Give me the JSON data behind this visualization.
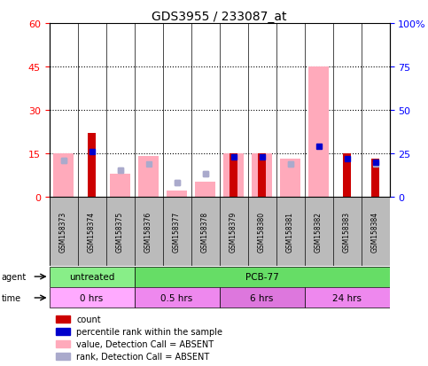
{
  "title": "GDS3955 / 233087_at",
  "samples": [
    "GSM158373",
    "GSM158374",
    "GSM158375",
    "GSM158376",
    "GSM158377",
    "GSM158378",
    "GSM158379",
    "GSM158380",
    "GSM158381",
    "GSM158382",
    "GSM158383",
    "GSM158384"
  ],
  "count_values": [
    0,
    22,
    0,
    0,
    0,
    0,
    15,
    15,
    0,
    0,
    15,
    13
  ],
  "percentile_rank": [
    21,
    26,
    15,
    19,
    8,
    13,
    23,
    23,
    19,
    29,
    22,
    20
  ],
  "percentile_rank_present": [
    false,
    true,
    false,
    false,
    false,
    false,
    true,
    true,
    false,
    true,
    true,
    true
  ],
  "value_absent": [
    15,
    0,
    8,
    14,
    2,
    5,
    15,
    15,
    13,
    45,
    0,
    0
  ],
  "rank_absent": [
    21,
    0,
    15,
    0,
    8,
    13,
    0,
    0,
    19,
    0,
    0,
    19
  ],
  "left_ylim": [
    0,
    60
  ],
  "right_ylim": [
    0,
    100
  ],
  "left_yticks": [
    0,
    15,
    30,
    45,
    60
  ],
  "right_yticks": [
    0,
    25,
    50,
    75,
    100
  ],
  "right_yticklabels": [
    "0",
    "25",
    "50",
    "75",
    "100%"
  ],
  "grid_lines": [
    15,
    30,
    45
  ],
  "bar_color_red": "#cc0000",
  "bar_color_pink": "#ffaabb",
  "dot_color_blue": "#0000cc",
  "dot_color_lightblue": "#aaaacc",
  "bg_color_plot": "#ffffff",
  "bg_color_sample": "#bbbbbb",
  "bg_color_figure": "#ffffff",
  "agent_untreated_color": "#88ee88",
  "agent_pcb_color": "#66dd66",
  "time_color_0": "#ffaaff",
  "time_color_05": "#ee88ee",
  "time_color_6": "#dd77dd",
  "time_color_24": "#ee88ee",
  "legend_labels": [
    "count",
    "percentile rank within the sample",
    "value, Detection Call = ABSENT",
    "rank, Detection Call = ABSENT"
  ],
  "legend_colors": [
    "#cc0000",
    "#0000cc",
    "#ffaabb",
    "#aaaacc"
  ]
}
